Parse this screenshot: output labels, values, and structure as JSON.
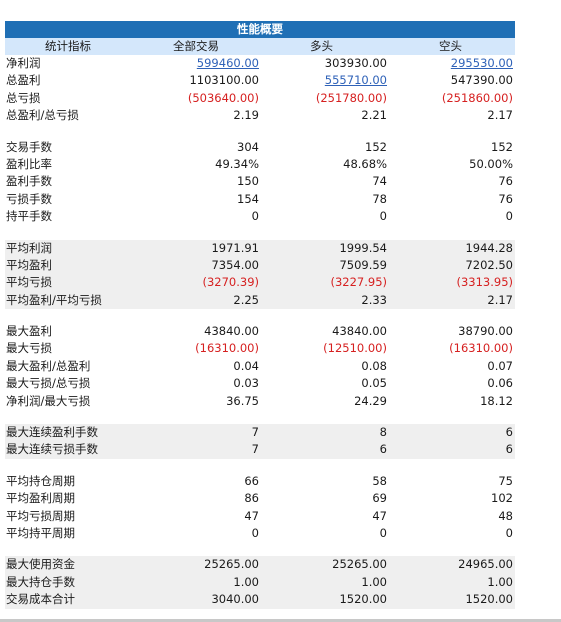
{
  "title": "性能概要",
  "headers": [
    "统计指标",
    "全部交易",
    "多头",
    "空头"
  ],
  "groups": [
    {
      "shade": false,
      "rows": [
        {
          "label": "净利润",
          "values": [
            "599460.00",
            "303930.00",
            "295530.00"
          ],
          "styles": [
            "link",
            "",
            "link"
          ]
        },
        {
          "label": "总盈利",
          "values": [
            "1103100.00",
            "555710.00",
            "547390.00"
          ],
          "styles": [
            "",
            "link",
            ""
          ]
        },
        {
          "label": "总亏损",
          "values": [
            "(503640.00)",
            "(251780.00)",
            "(251860.00)"
          ],
          "styles": [
            "neg",
            "neg",
            "neg"
          ]
        },
        {
          "label": "总盈利/总亏损",
          "values": [
            "2.19",
            "2.21",
            "2.17"
          ],
          "styles": [
            "",
            "",
            ""
          ]
        }
      ]
    },
    {
      "shade": false,
      "rows": [
        {
          "label": "交易手数",
          "values": [
            "304",
            "152",
            "152"
          ],
          "styles": [
            "",
            "",
            ""
          ]
        },
        {
          "label": "盈利比率",
          "values": [
            "49.34%",
            "48.68%",
            "50.00%"
          ],
          "styles": [
            "",
            "",
            ""
          ]
        },
        {
          "label": "盈利手数",
          "values": [
            "150",
            "74",
            "76"
          ],
          "styles": [
            "",
            "",
            ""
          ]
        },
        {
          "label": "亏损手数",
          "values": [
            "154",
            "78",
            "76"
          ],
          "styles": [
            "",
            "",
            ""
          ]
        },
        {
          "label": "持平手数",
          "values": [
            "0",
            "0",
            "0"
          ],
          "styles": [
            "",
            "",
            ""
          ]
        }
      ]
    },
    {
      "shade": true,
      "rows": [
        {
          "label": "平均利润",
          "values": [
            "1971.91",
            "1999.54",
            "1944.28"
          ],
          "styles": [
            "",
            "",
            ""
          ]
        },
        {
          "label": "平均盈利",
          "values": [
            "7354.00",
            "7509.59",
            "7202.50"
          ],
          "styles": [
            "",
            "",
            ""
          ]
        },
        {
          "label": "平均亏损",
          "values": [
            "(3270.39)",
            "(3227.95)",
            "(3313.95)"
          ],
          "styles": [
            "neg",
            "neg",
            "neg"
          ]
        },
        {
          "label": "平均盈利/平均亏损",
          "values": [
            "2.25",
            "2.33",
            "2.17"
          ],
          "styles": [
            "",
            "",
            ""
          ]
        }
      ]
    },
    {
      "shade": false,
      "rows": [
        {
          "label": "最大盈利",
          "values": [
            "43840.00",
            "43840.00",
            "38790.00"
          ],
          "styles": [
            "",
            "",
            ""
          ]
        },
        {
          "label": "最大亏损",
          "values": [
            "(16310.00)",
            "(12510.00)",
            "(16310.00)"
          ],
          "styles": [
            "neg",
            "neg",
            "neg"
          ]
        },
        {
          "label": "最大盈利/总盈利",
          "values": [
            "0.04",
            "0.08",
            "0.07"
          ],
          "styles": [
            "",
            "",
            ""
          ]
        },
        {
          "label": "最大亏损/总亏损",
          "values": [
            "0.03",
            "0.05",
            "0.06"
          ],
          "styles": [
            "",
            "",
            ""
          ]
        },
        {
          "label": "净利润/最大亏损",
          "values": [
            "36.75",
            "24.29",
            "18.12"
          ],
          "styles": [
            "",
            "",
            ""
          ]
        }
      ]
    },
    {
      "shade": true,
      "rows": [
        {
          "label": "最大连续盈利手数",
          "values": [
            "7",
            "8",
            "6"
          ],
          "styles": [
            "",
            "",
            ""
          ]
        },
        {
          "label": "最大连续亏损手数",
          "values": [
            "7",
            "6",
            "6"
          ],
          "styles": [
            "",
            "",
            ""
          ]
        }
      ]
    },
    {
      "shade": false,
      "rows": [
        {
          "label": "平均持仓周期",
          "values": [
            "66",
            "58",
            "75"
          ],
          "styles": [
            "",
            "",
            ""
          ]
        },
        {
          "label": "平均盈利周期",
          "values": [
            "86",
            "69",
            "102"
          ],
          "styles": [
            "",
            "",
            ""
          ]
        },
        {
          "label": "平均亏损周期",
          "values": [
            "47",
            "47",
            "48"
          ],
          "styles": [
            "",
            "",
            ""
          ]
        },
        {
          "label": "平均持平周期",
          "values": [
            "0",
            "0",
            "0"
          ],
          "styles": [
            "",
            "",
            ""
          ]
        }
      ]
    },
    {
      "shade": true,
      "rows": [
        {
          "label": "最大使用资金",
          "values": [
            "25265.00",
            "25265.00",
            "24965.00"
          ],
          "styles": [
            "",
            "",
            ""
          ]
        },
        {
          "label": "最大持仓手数",
          "values": [
            "1.00",
            "1.00",
            "1.00"
          ],
          "styles": [
            "",
            "",
            ""
          ]
        },
        {
          "label": "交易成本合计",
          "values": [
            "3040.00",
            "1520.00",
            "1520.00"
          ],
          "styles": [
            "",
            "",
            ""
          ]
        }
      ]
    }
  ]
}
